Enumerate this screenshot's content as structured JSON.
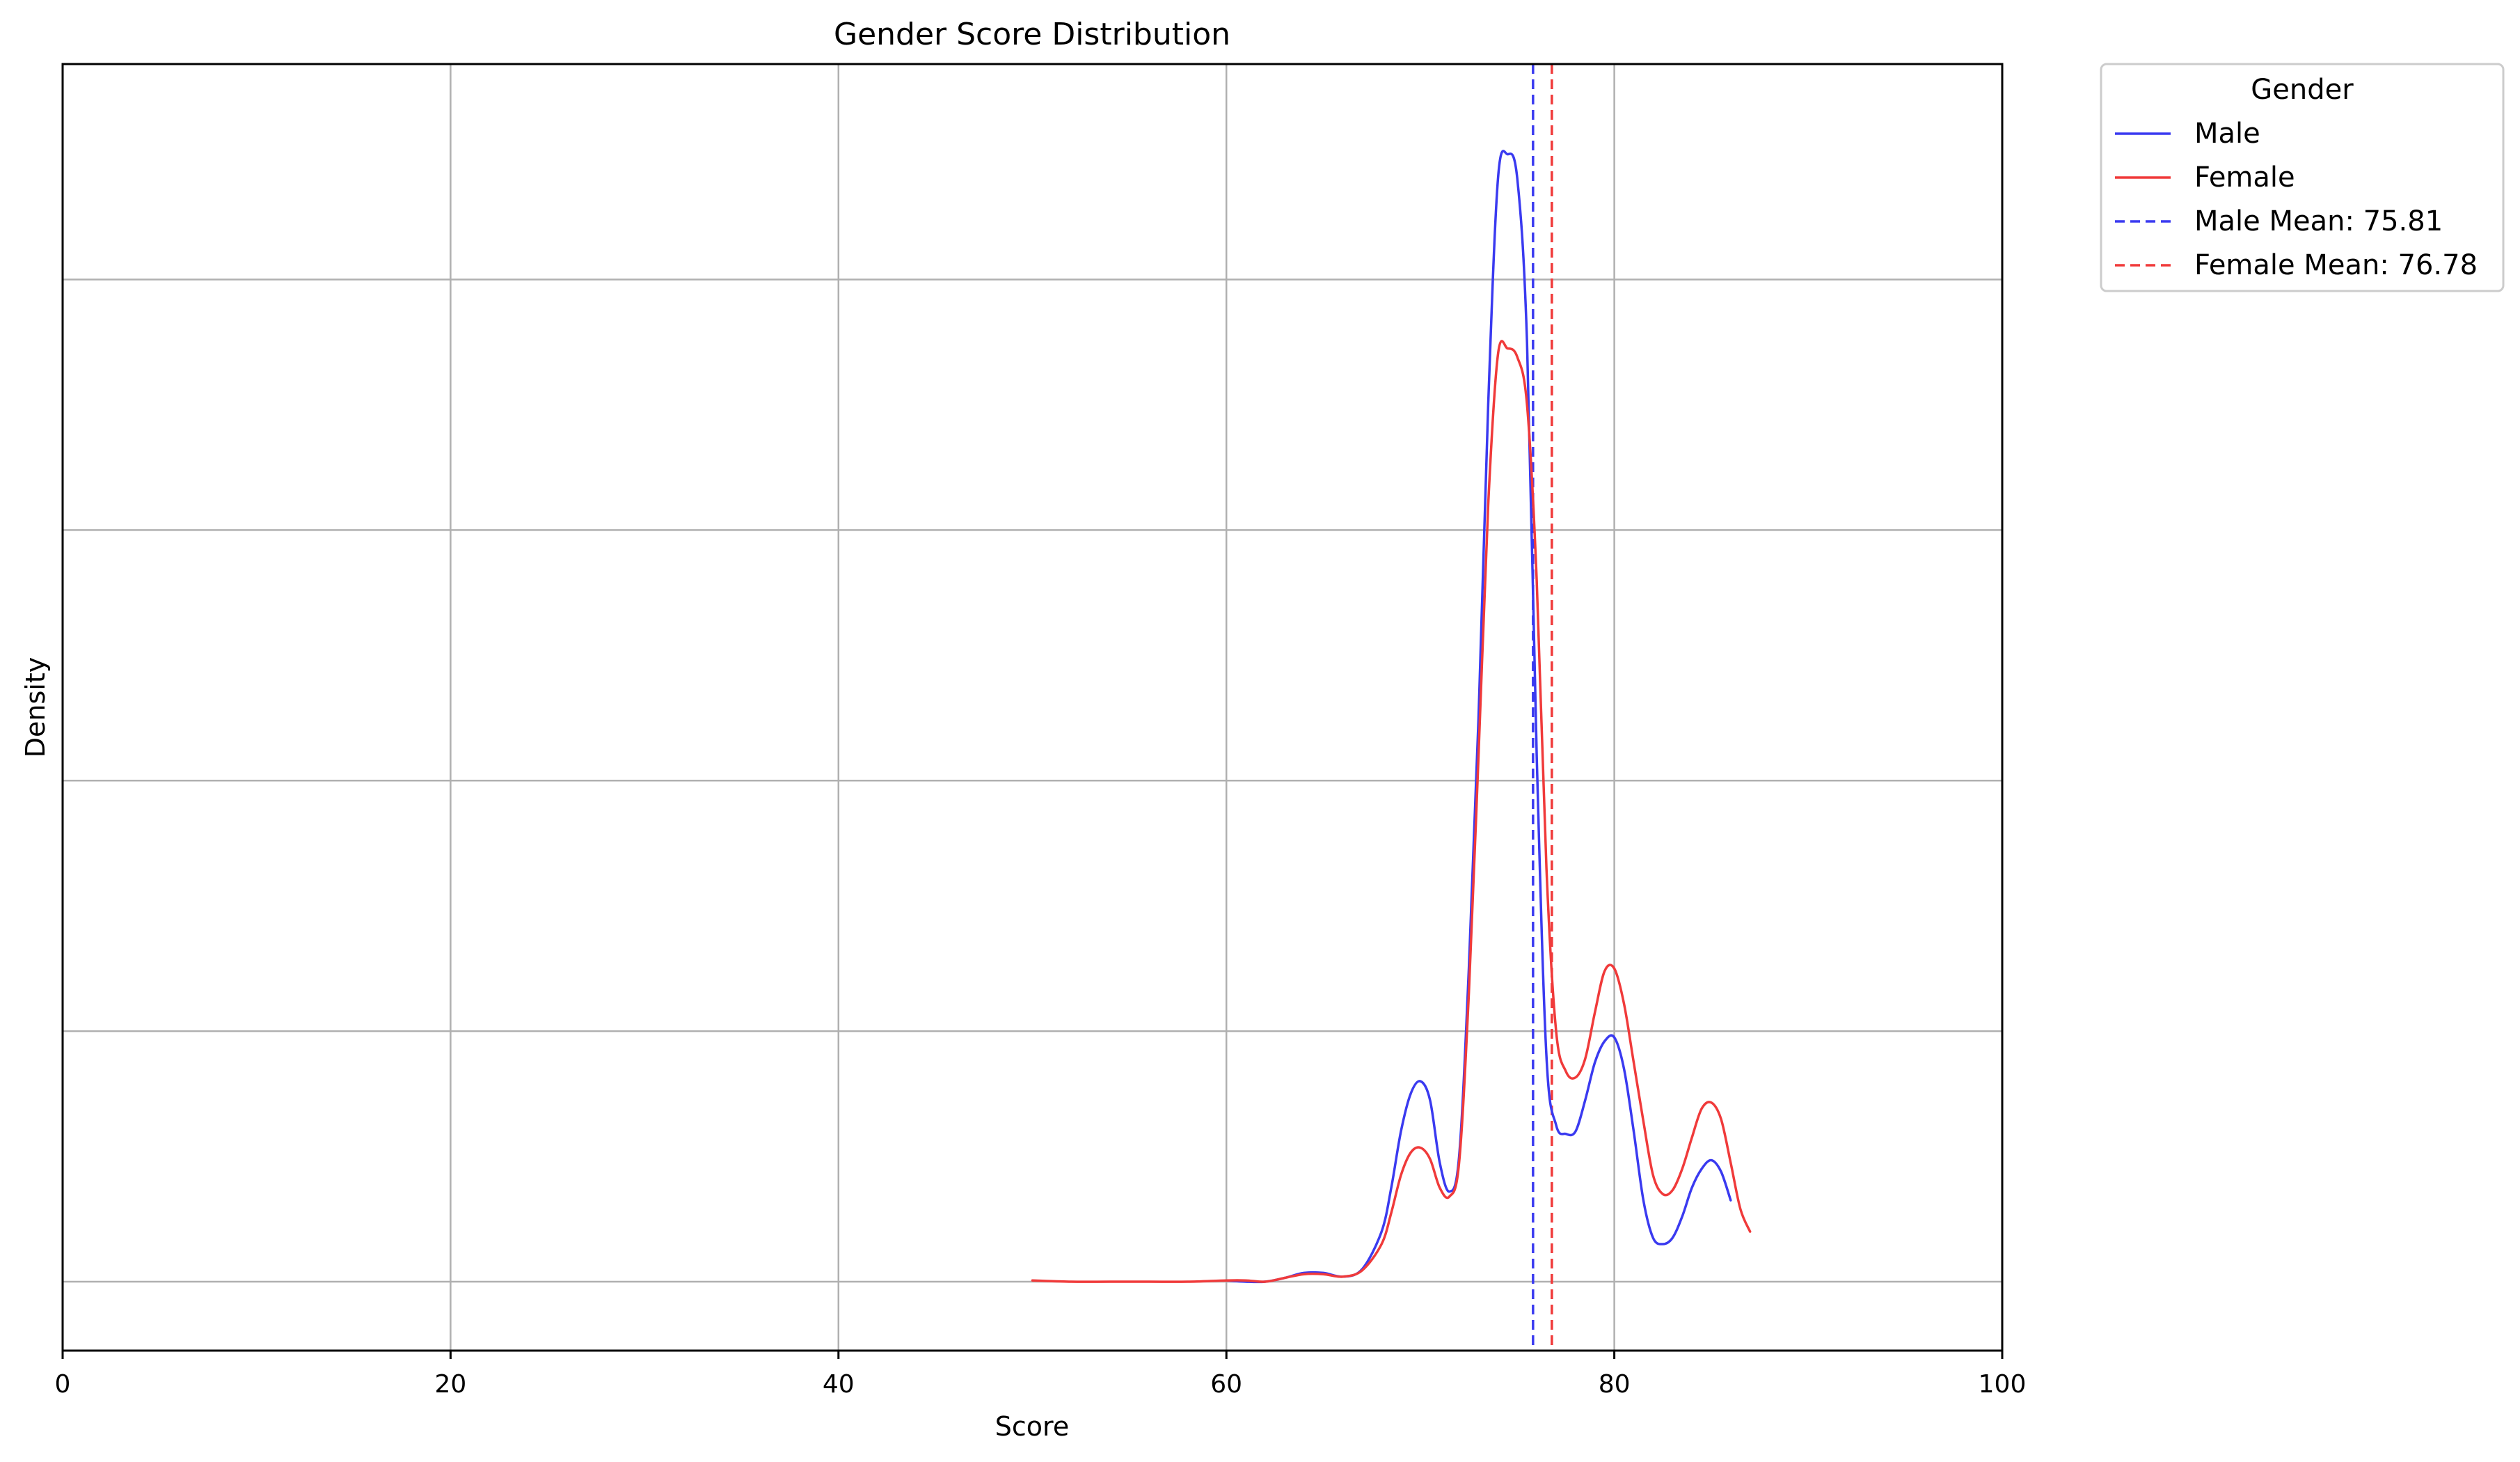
{
  "chart_data": {
    "type": "line",
    "title": "Gender Score Distribution",
    "xlabel": "Score",
    "ylabel": "Density",
    "xlim": [
      0,
      100
    ],
    "ylim": [
      -0.0055,
      0.0972
    ],
    "x_ticks": [
      0,
      20,
      40,
      60,
      80,
      100
    ],
    "x_tick_labels": [
      "0",
      "20",
      "40",
      "60",
      "80",
      "100"
    ],
    "y_gridlines": [
      0,
      0.02,
      0.04,
      0.06,
      0.08
    ],
    "y_tick_labels_shown": false,
    "grid": true,
    "legend": {
      "title": "Gender",
      "placement": "outside-top-right",
      "entries": [
        {
          "label": "Male",
          "style": "solid",
          "color": "#3a3af0"
        },
        {
          "label": "Female",
          "style": "solid",
          "color": "#f03a3a"
        },
        {
          "label": "Male Mean: 75.81",
          "style": "dashed",
          "color": "#3a3af0"
        },
        {
          "label": "Female Mean: 76.78",
          "style": "dashed",
          "color": "#f03a3a"
        }
      ]
    },
    "series": [
      {
        "name": "Male",
        "color": "#3a3af0",
        "x": [
          60,
          61,
          62,
          63,
          64,
          65,
          66,
          67,
          68,
          68.5,
          69,
          69.5,
          70,
          70.5,
          71,
          71.5,
          72,
          72.5,
          73,
          73.5,
          74,
          74.5,
          75,
          75.5,
          76,
          76.5,
          77,
          77.5,
          78,
          78.5,
          79,
          79.5,
          80,
          80.5,
          81,
          81.5,
          82,
          82.5,
          83,
          83.5,
          84,
          84.5,
          85,
          85.5,
          86
        ],
        "y": [
          0.0001,
          0.0,
          0.0,
          0.0003,
          0.0007,
          0.0007,
          0.0004,
          0.001,
          0.004,
          0.0075,
          0.012,
          0.015,
          0.016,
          0.0145,
          0.0095,
          0.0072,
          0.01,
          0.025,
          0.045,
          0.07,
          0.088,
          0.09,
          0.088,
          0.075,
          0.042,
          0.018,
          0.0125,
          0.0118,
          0.012,
          0.0145,
          0.0175,
          0.0192,
          0.0195,
          0.017,
          0.012,
          0.0065,
          0.0035,
          0.003,
          0.0035,
          0.0052,
          0.0075,
          0.009,
          0.0097,
          0.0088,
          0.0065
        ]
      },
      {
        "name": "Female",
        "color": "#f03a3a",
        "x": [
          50,
          52,
          54,
          56,
          58,
          60,
          61,
          62,
          63,
          64,
          65,
          66,
          67,
          68,
          68.5,
          69,
          69.5,
          70,
          70.5,
          71,
          71.5,
          72,
          72.5,
          73,
          73.5,
          74,
          74.5,
          75,
          75.5,
          76,
          76.5,
          77,
          77.5,
          78,
          78.5,
          79,
          79.5,
          80,
          80.5,
          81,
          81.5,
          82,
          82.5,
          83,
          83.5,
          84,
          84.5,
          85,
          85.5,
          86,
          86.5,
          87
        ],
        "y": [
          0.0001,
          0.0,
          0.0,
          0.0,
          0.0,
          0.0001,
          0.0001,
          0.0,
          0.0003,
          0.0006,
          0.0006,
          0.0004,
          0.0009,
          0.003,
          0.0055,
          0.0085,
          0.0103,
          0.0107,
          0.0098,
          0.0075,
          0.0068,
          0.0095,
          0.023,
          0.042,
          0.062,
          0.074,
          0.0745,
          0.0738,
          0.07,
          0.056,
          0.033,
          0.02,
          0.0168,
          0.0163,
          0.0178,
          0.0215,
          0.0248,
          0.025,
          0.0222,
          0.0175,
          0.0128,
          0.0085,
          0.007,
          0.0073,
          0.009,
          0.0115,
          0.0138,
          0.0143,
          0.013,
          0.0095,
          0.0058,
          0.004
        ]
      }
    ],
    "mean_lines": [
      {
        "label": "Male Mean: 75.81",
        "x": 75.81,
        "color": "#3a3af0"
      },
      {
        "label": "Female Mean: 76.78",
        "x": 76.78,
        "color": "#f03a3a"
      }
    ]
  }
}
